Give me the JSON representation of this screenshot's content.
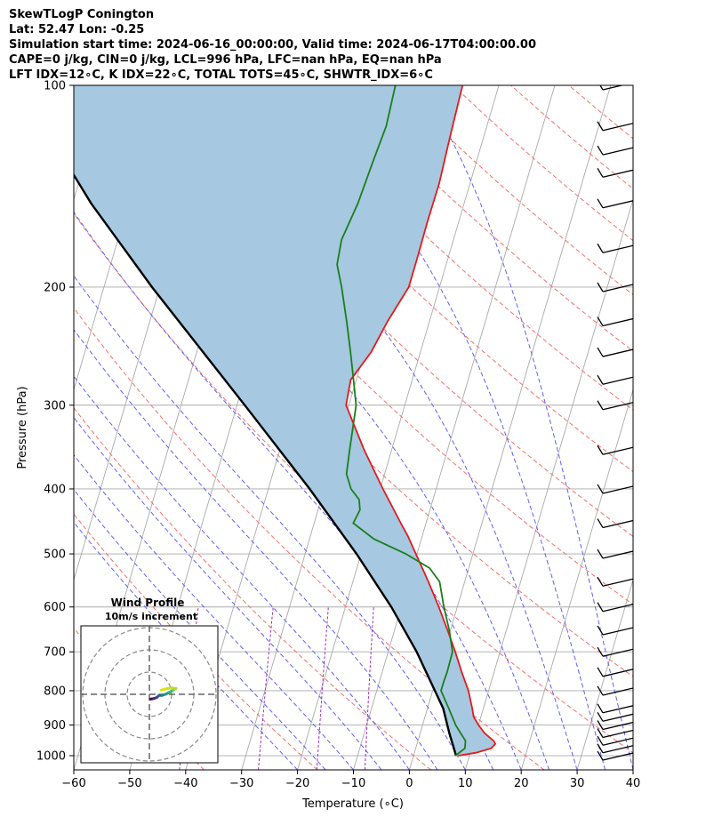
{
  "header": {
    "line1": "SkewTLogP Conington",
    "line2": "Lat: 52.47   Lon: -0.25",
    "line3": "Simulation start time: 2024-06-16_00:00:00, Valid time: 2024-06-17T04:00:00.00",
    "line4": "CAPE=0 j/kg, CIN=0 j/kg, LCL=996 hPa, LFC=nan hPa, EQ=nan hPa",
    "line5": "LFT IDX=12∘C, K IDX=22∘C, TOTAL TOTS=45∘C, SHWTR_IDX=6∘C"
  },
  "chart_data": {
    "type": "line",
    "xlabel": "Temperature (∘C)",
    "ylabel": "Pressure (hPa)",
    "xlim": [
      -60,
      40
    ],
    "ylim": [
      1050,
      100
    ],
    "yscale": "log",
    "x_ticks": [
      -60,
      -50,
      -40,
      -30,
      -20,
      -10,
      0,
      10,
      20,
      30,
      40
    ],
    "y_ticks": [
      1000,
      900,
      800,
      700,
      600,
      500,
      400,
      300,
      200,
      100
    ],
    "grid": true,
    "colors": {
      "temperature": "#e41a1c",
      "dewpoint": "#1a7f1a",
      "parcel": "#000000",
      "cape_fill": "#a6c8e0",
      "dry_adiabat": "#f07070",
      "moist_adiabat": "#6060f0",
      "mixing_ratio": "#9b30c0",
      "isotherm": "#aaaaaa"
    },
    "series": [
      {
        "name": "",
        "role": "temperature",
        "pressure": [
          1000,
          990,
          975,
          960,
          950,
          925,
          900,
          875,
          850,
          800,
          750,
          700,
          650,
          600,
          550,
          500,
          470,
          450,
          400,
          350,
          300,
          275,
          250,
          225,
          200,
          180,
          160,
          140,
          120,
          100
        ],
        "temperature": [
          8,
          11,
          13.5,
          14,
          13.5,
          11.5,
          10,
          8.7,
          8,
          6.4,
          4.2,
          2.0,
          -0.5,
          -3.3,
          -6.5,
          -10.2,
          -12.6,
          -14.5,
          -19.5,
          -24.9,
          -30.5,
          -31.0,
          -28.8,
          -27.5,
          -25.5,
          -25.5,
          -25.6,
          -25.5,
          -26.0,
          -26.5
        ]
      },
      {
        "name": "",
        "role": "dewpoint",
        "pressure": [
          1000,
          975,
          950,
          925,
          900,
          850,
          800,
          775,
          750,
          700,
          650,
          600,
          550,
          525,
          500,
          475,
          450,
          430,
          415,
          400,
          380,
          350,
          300,
          275,
          250,
          225,
          200,
          185,
          170,
          150,
          130,
          115,
          100
        ],
        "temperature": [
          7.5,
          8.8,
          8.5,
          7.2,
          5.9,
          3.8,
          1.5,
          1.5,
          1.6,
          1.5,
          -0.2,
          -2.4,
          -4.5,
          -7.0,
          -12.0,
          -18.5,
          -23.0,
          -22.5,
          -23.2,
          -25.2,
          -26.8,
          -27.5,
          -28.7,
          -30.5,
          -32.5,
          -34.8,
          -37.5,
          -39.5,
          -40.0,
          -39.0,
          -38.5,
          -38.0,
          -38.5
        ]
      },
      {
        "name": "",
        "role": "parcel",
        "pressure": [
          1000,
          925,
          850,
          700,
          600,
          500,
          400,
          300,
          200,
          150,
          100
        ],
        "temperature": [
          7.6,
          5.2,
          2.8,
          -4.9,
          -11.8,
          -20.8,
          -32.6,
          -48.6,
          -71.4,
          -86.7,
          -105.8
        ]
      }
    ],
    "wind_barbs": {
      "pressure": [
        1000,
        975,
        950,
        925,
        900,
        875,
        850,
        800,
        750,
        700,
        650,
        600,
        550,
        500,
        450,
        400,
        350,
        300,
        275,
        250,
        225,
        200,
        175,
        150,
        135,
        125,
        115,
        100
      ]
    },
    "inset": {
      "title": "Wind Profile",
      "subtitle": "10m/s increment"
    }
  }
}
